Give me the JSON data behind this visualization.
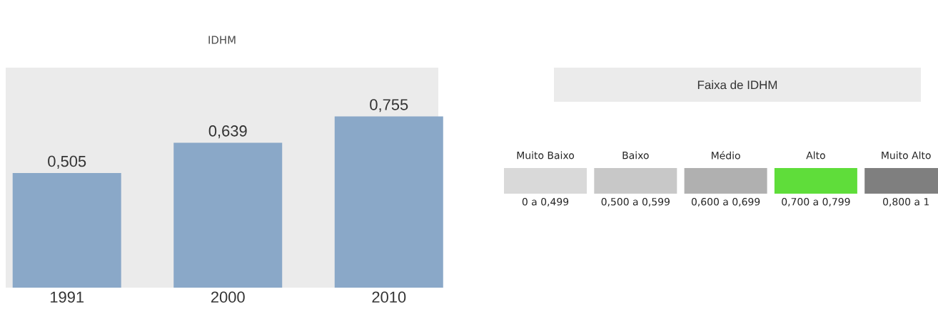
{
  "chart_data": [
    {
      "type": "bar",
      "title": "IDHM",
      "categories": [
        "1991",
        "2000",
        "2010"
      ],
      "values": [
        0.505,
        0.639,
        0.755
      ],
      "value_labels": [
        "0,505",
        "0,639",
        "0,755"
      ],
      "color": "#8aa8c8",
      "ylim": [
        0,
        0.97
      ],
      "tick_labels": "x"
    },
    {
      "type": "other",
      "title": "Faixa de IDHM",
      "categories": [
        "Muito Baixo",
        "Baixo",
        "Médio",
        "Alto",
        "Muito Alto"
      ],
      "colors": [
        "#d9d9d9",
        "#c8c8c8",
        "#b0b0b0",
        "#5fdd3a",
        "#7f7f7f"
      ],
      "annotations": [
        "0 a 0,499",
        "0,500 a 0,599",
        "0,600 a 0,699",
        "0,700 a 0,799",
        "0,800 a 1"
      ]
    }
  ]
}
